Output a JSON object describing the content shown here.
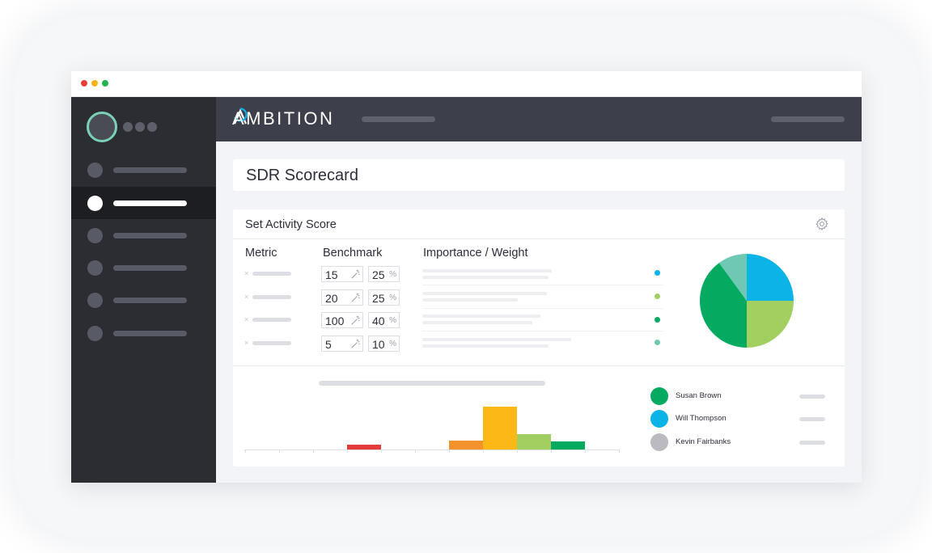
{
  "app": {
    "brand": "AMBITION"
  },
  "page": {
    "title": "SDR Scorecard"
  },
  "card": {
    "title": "Set Activity Score"
  },
  "columns": {
    "metric": "Metric",
    "benchmark": "Benchmark",
    "importance": "Importance / Weight"
  },
  "rows": [
    {
      "benchmark": "15",
      "weight": "25",
      "weight_unit": "%",
      "color": "#0bb3e6"
    },
    {
      "benchmark": "20",
      "weight": "25",
      "weight_unit": "%",
      "color": "#a1d060"
    },
    {
      "benchmark": "100",
      "weight": "40",
      "weight_unit": "%",
      "color": "#05aa61"
    },
    {
      "benchmark": "5",
      "weight": "10",
      "weight_unit": "%",
      "color": "#6fc8b3"
    }
  ],
  "pie_chart": {
    "slices": [
      {
        "value": 25,
        "color": "#0bb3e6"
      },
      {
        "value": 25,
        "color": "#a1d060"
      },
      {
        "value": 40,
        "color": "#05aa61"
      },
      {
        "value": 10,
        "color": "#6fc8b3"
      }
    ]
  },
  "bar_chart": {
    "bars": [
      {
        "value": 0.11,
        "color": "#e53b3b"
      },
      {
        "value": 0.21,
        "color": "#f4922b"
      },
      {
        "value": 1.0,
        "color": "#fbb817"
      },
      {
        "value": 0.36,
        "color": "#a1d060"
      },
      {
        "value": 0.19,
        "color": "#05aa61"
      }
    ]
  },
  "people": [
    {
      "name": "Susan Brown",
      "color": "#05aa61"
    },
    {
      "name": "Will Thompson",
      "color": "#0bb3e6"
    },
    {
      "name": "Kevin Fairbanks",
      "color": "#b9bbc1"
    }
  ],
  "icons": {
    "settings": "gear-icon",
    "autofill": "magic-wand-icon"
  },
  "colors": {
    "sidebar": "#2c2d33",
    "topbar": "#3d3f4a",
    "accent": "#0bb3e6"
  }
}
